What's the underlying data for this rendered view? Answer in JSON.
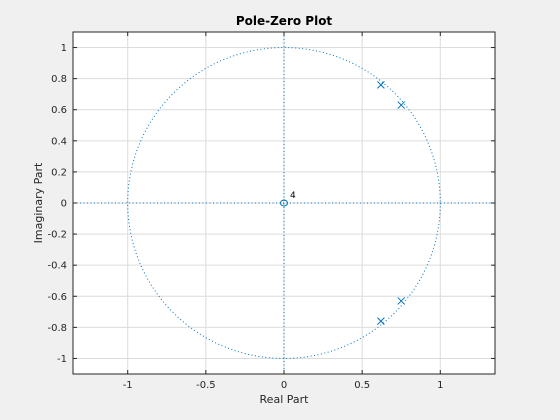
{
  "chart_data": {
    "type": "scatter",
    "title": "Pole-Zero Plot",
    "xlabel": "Real Part",
    "ylabel": "Imaginary Part",
    "xlim": [
      -1.35,
      1.35
    ],
    "ylim": [
      -1.1,
      1.1
    ],
    "x_ticks": [
      -1,
      -0.5,
      0,
      0.5,
      1
    ],
    "x_tick_labels": [
      "-1",
      "-0.5",
      "0",
      "0.5",
      "1"
    ],
    "y_ticks": [
      1,
      0.8,
      0.6,
      0.4,
      0.2,
      0,
      -0.2,
      -0.4,
      -0.6,
      -0.8,
      -1
    ],
    "y_tick_labels": [
      "1",
      "0.8",
      "0.6",
      "0.4",
      "0.2",
      "0",
      "-0.2",
      "-0.4",
      "-0.6",
      "-0.8",
      "-1"
    ],
    "grid": true,
    "unit_circle": true,
    "zeros": [
      {
        "x": 0,
        "y": 0,
        "label": "4"
      }
    ],
    "poles": [
      {
        "x": 0.62,
        "y": 0.76
      },
      {
        "x": 0.75,
        "y": 0.63
      },
      {
        "x": 0.75,
        "y": -0.63
      },
      {
        "x": 0.62,
        "y": -0.76
      }
    ],
    "colors": {
      "marker": "#0072bd",
      "circle": "#0072bd",
      "grid": "#dcdcdc",
      "axes_box": "#262626",
      "plot_bg": "#ffffff",
      "figure_bg": "#f0f0f0"
    }
  }
}
